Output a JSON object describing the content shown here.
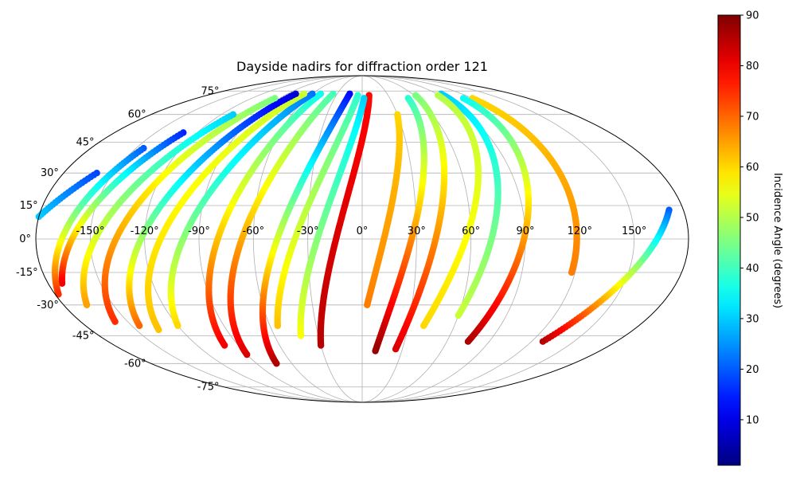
{
  "chart_data": {
    "type": "scatter",
    "projection": "mollweide",
    "title": "Dayside nadirs for diffraction order 121",
    "xlabel": "",
    "ylabel": "",
    "x_ticks": [
      "-150°",
      "-120°",
      "-90°",
      "-60°",
      "-30°",
      "0°",
      "30°",
      "60°",
      "90°",
      "120°",
      "150°"
    ],
    "x_tick_values": [
      -150,
      -120,
      -90,
      -60,
      -30,
      0,
      30,
      60,
      90,
      120,
      150
    ],
    "y_ticks": [
      "-75°",
      "-60°",
      "-45°",
      "-30°",
      "-15°",
      "0°",
      "15°",
      "30°",
      "45°",
      "60°",
      "75°"
    ],
    "y_tick_values": [
      -75,
      -60,
      -45,
      -30,
      -15,
      0,
      15,
      30,
      45,
      60,
      75
    ],
    "grid": true,
    "colorbar": {
      "label": "Incidence Angle (degrees)",
      "ticks": [
        "10",
        "20",
        "30",
        "40",
        "50",
        "60",
        "70",
        "80",
        "90"
      ],
      "tick_values": [
        10,
        20,
        30,
        40,
        50,
        60,
        70,
        80,
        90
      ],
      "range": [
        1,
        90
      ],
      "colormap": "jet"
    },
    "tracks": [
      {
        "lon_top": 172,
        "lat_top": 13,
        "lon_bot": 128,
        "lat_bot": -48,
        "inc_top": 20,
        "inc_bot": 85
      },
      {
        "lon_top": 120,
        "lat_top": 70,
        "lon_bot": 118,
        "lat_bot": -15,
        "inc_top": 60,
        "inc_bot": 68
      },
      {
        "lon_top": 110,
        "lat_top": 70,
        "lon_bot": 75,
        "lat_bot": -48,
        "inc_top": 35,
        "inc_bot": 86
      },
      {
        "lon_top": 95,
        "lat_top": 73,
        "lon_bot": 60,
        "lat_bot": -35,
        "inc_top": 30,
        "inc_bot": 52
      },
      {
        "lon_top": 88,
        "lat_top": 72,
        "lon_bot": 40,
        "lat_bot": -40,
        "inc_top": 50,
        "inc_bot": 60
      },
      {
        "lon_top": 62,
        "lat_top": 72,
        "lon_bot": 25,
        "lat_bot": -52,
        "inc_top": 45,
        "inc_bot": 82
      },
      {
        "lon_top": 50,
        "lat_top": 70,
        "lon_bot": 10,
        "lat_bot": -53,
        "inc_top": 38,
        "inc_bot": 88
      },
      {
        "lon_top": 30,
        "lat_top": 60,
        "lon_bot": 3,
        "lat_bot": -30,
        "inc_top": 60,
        "inc_bot": 68
      },
      {
        "lon_top": 8,
        "lat_top": 72,
        "lon_bot": -30,
        "lat_bot": -50,
        "inc_top": 78,
        "inc_bot": 85
      },
      {
        "lon_top": 2,
        "lat_top": 70,
        "lon_bot": -42,
        "lat_bot": -45,
        "inc_top": 30,
        "inc_bot": 56
      },
      {
        "lon_top": -5,
        "lat_top": 72,
        "lon_bot": -55,
        "lat_bot": -40,
        "inc_top": 38,
        "inc_bot": 62
      },
      {
        "lon_top": -15,
        "lat_top": 73,
        "lon_bot": -73,
        "lat_bot": -60,
        "inc_top": 12,
        "inc_bot": 86
      },
      {
        "lon_top": -35,
        "lat_top": 73,
        "lon_bot": -90,
        "lat_bot": -55,
        "inc_top": 40,
        "inc_bot": 82
      },
      {
        "lon_top": -50,
        "lat_top": 73,
        "lon_bot": -100,
        "lat_bot": -50,
        "inc_top": 35,
        "inc_bot": 80
      },
      {
        "lon_top": -60,
        "lat_top": 73,
        "lon_bot": -120,
        "lat_bot": -40,
        "inc_top": 22,
        "inc_bot": 60
      },
      {
        "lon_top": -70,
        "lat_top": 73,
        "lon_bot": -135,
        "lat_bot": -42,
        "inc_top": 52,
        "inc_bot": 62
      },
      {
        "lon_top": -80,
        "lat_top": 73,
        "lon_bot": -145,
        "lat_bot": -40,
        "inc_top": 8,
        "inc_bot": 70
      },
      {
        "lon_top": -95,
        "lat_top": 70,
        "lon_bot": -158,
        "lat_bot": -38,
        "inc_top": 45,
        "inc_bot": 75
      },
      {
        "lon_top": -110,
        "lat_top": 60,
        "lon_bot": -166,
        "lat_bot": -30,
        "inc_top": 30,
        "inc_bot": 65
      },
      {
        "lon_top": -130,
        "lat_top": 50,
        "lon_bot": -172,
        "lat_bot": -20,
        "inc_top": 15,
        "inc_bot": 80
      },
      {
        "lon_top": -145,
        "lat_top": 42,
        "lon_bot": -178,
        "lat_bot": -25,
        "inc_top": 20,
        "inc_bot": 75
      },
      {
        "lon_top": -160,
        "lat_top": 30,
        "lon_bot": -180,
        "lat_bot": 10,
        "inc_top": 18,
        "inc_bot": 30
      }
    ]
  }
}
